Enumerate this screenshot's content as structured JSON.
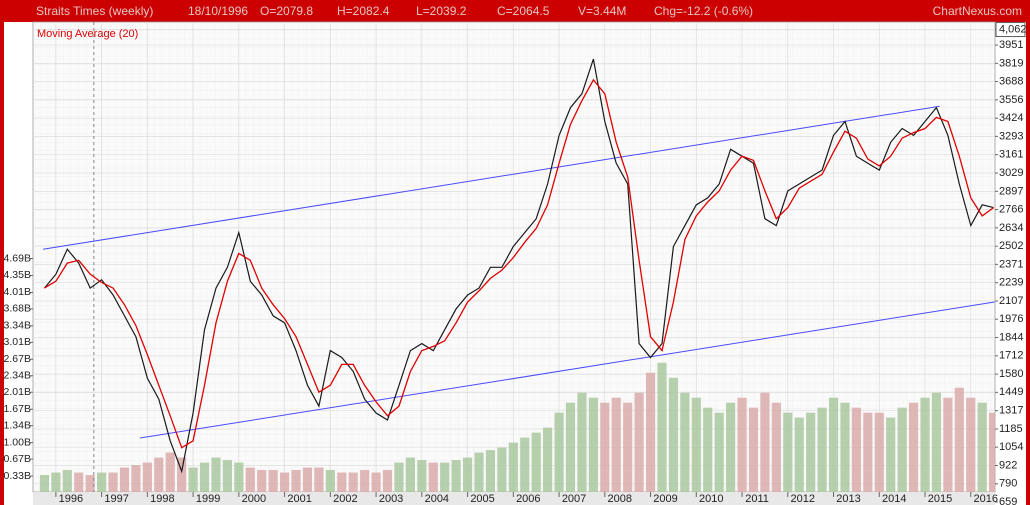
{
  "chart_data": {
    "type": "line",
    "title": "Straits Times (weekly)",
    "info": [
      "18/10/1996",
      "O=2079.8",
      "H=2082.4",
      "L=2039.2",
      "C=2064.5",
      "V=3.44M",
      "Chg=-12.2 (-0.6%)"
    ],
    "watermark": "ChartNexus.com",
    "x": [
      1995.75,
      1996,
      1996.25,
      1996.5,
      1996.75,
      1997,
      1997.25,
      1997.5,
      1997.75,
      1998,
      1998.25,
      1998.5,
      1998.75,
      1999,
      1999.25,
      1999.5,
      1999.75,
      2000,
      2000.25,
      2000.5,
      2000.75,
      2001,
      2001.25,
      2001.5,
      2001.75,
      2002,
      2002.25,
      2002.5,
      2002.75,
      2003,
      2003.25,
      2003.5,
      2003.75,
      2004,
      2004.25,
      2004.5,
      2004.75,
      2005,
      2005.25,
      2005.5,
      2005.75,
      2006,
      2006.25,
      2006.5,
      2006.75,
      2007,
      2007.25,
      2007.5,
      2007.75,
      2008,
      2008.25,
      2008.5,
      2008.75,
      2009,
      2009.25,
      2009.5,
      2009.75,
      2010,
      2010.25,
      2010.5,
      2010.75,
      2011,
      2011.25,
      2011.5,
      2011.75,
      2012,
      2012.25,
      2012.5,
      2012.75,
      2013,
      2013.25,
      2013.5,
      2013.75,
      2014,
      2014.25,
      2014.5,
      2014.75,
      2015,
      2015.25,
      2015.5,
      2015.75,
      2016,
      2016.25,
      2016.5
    ],
    "series": [
      {
        "color": "#1a1a1a",
        "values": [
          2200,
          2300,
          2480,
          2380,
          2200,
          2260,
          2150,
          2000,
          1850,
          1550,
          1400,
          1100,
          880,
          1300,
          1900,
          2200,
          2350,
          2600,
          2250,
          2150,
          2000,
          1950,
          1750,
          1500,
          1350,
          1750,
          1700,
          1600,
          1400,
          1300,
          1250,
          1500,
          1750,
          1800,
          1750,
          1900,
          2050,
          2150,
          2200,
          2350,
          2350,
          2500,
          2600,
          2700,
          2950,
          3300,
          3500,
          3600,
          3850,
          3400,
          3100,
          2950,
          1800,
          1700,
          1800,
          2500,
          2650,
          2800,
          2850,
          2950,
          3200,
          3150,
          3100,
          2700,
          2650,
          2900,
          2950,
          3000,
          3050,
          3300,
          3400,
          3150,
          3100,
          3050,
          3250,
          3350,
          3300,
          3400,
          3500,
          3300,
          2950,
          2650,
          2800,
          2780
        ]
      },
      {
        "name": "Moving Average (20)",
        "color": "#e00000",
        "values": [
          2200,
          2250,
          2380,
          2400,
          2300,
          2240,
          2200,
          2080,
          1930,
          1720,
          1500,
          1280,
          1050,
          1100,
          1500,
          1950,
          2250,
          2450,
          2400,
          2200,
          2080,
          1980,
          1850,
          1650,
          1450,
          1500,
          1650,
          1650,
          1500,
          1380,
          1280,
          1350,
          1600,
          1750,
          1780,
          1820,
          1950,
          2100,
          2180,
          2270,
          2330,
          2420,
          2530,
          2630,
          2800,
          3100,
          3380,
          3550,
          3700,
          3600,
          3250,
          3000,
          2400,
          1850,
          1750,
          2100,
          2550,
          2720,
          2820,
          2900,
          3050,
          3150,
          3120,
          2900,
          2700,
          2780,
          2920,
          2970,
          3020,
          3180,
          3330,
          3280,
          3130,
          3080,
          3150,
          3280,
          3320,
          3350,
          3430,
          3400,
          3150,
          2850,
          2720,
          2780
        ]
      },
      {
        "axis": "y2",
        "up_color": "#a9c79e",
        "down_color": "#d9aaaa",
        "values": [
          0.35,
          0.4,
          0.45,
          0.4,
          0.35,
          0.4,
          0.4,
          0.5,
          0.55,
          0.6,
          0.7,
          0.8,
          0.7,
          0.5,
          0.6,
          0.7,
          0.65,
          0.6,
          0.5,
          0.45,
          0.45,
          0.4,
          0.45,
          0.5,
          0.5,
          0.45,
          0.4,
          0.4,
          0.45,
          0.4,
          0.45,
          0.6,
          0.7,
          0.65,
          0.6,
          0.6,
          0.65,
          0.7,
          0.8,
          0.85,
          0.9,
          1.0,
          1.1,
          1.2,
          1.3,
          1.6,
          1.8,
          2.0,
          1.9,
          1.8,
          1.9,
          1.8,
          2.0,
          2.4,
          2.6,
          2.3,
          2.0,
          1.9,
          1.7,
          1.6,
          1.8,
          1.9,
          1.7,
          2.0,
          1.8,
          1.6,
          1.5,
          1.6,
          1.7,
          1.9,
          1.8,
          1.7,
          1.6,
          1.6,
          1.5,
          1.7,
          1.8,
          1.9,
          2.0,
          1.9,
          2.1,
          1.9,
          1.8,
          1.6
        ]
      }
    ],
    "trendlines": [
      {
        "color": "#4a4aff",
        "x": [
          1995.72,
          2015.32
        ],
        "values": [
          2480,
          3510
        ]
      },
      {
        "color": "#4a4aff",
        "x": [
          1997.84,
          2016.52
        ],
        "values": [
          1120,
          2100
        ]
      }
    ],
    "cursor_x": 1996.83,
    "xlim": [
      1995.5,
      2016.53
    ],
    "xticks": [
      1996,
      1997,
      1998,
      1999,
      2000,
      2001,
      2002,
      2003,
      2004,
      2005,
      2006,
      2007,
      2008,
      2009,
      2010,
      2011,
      2012,
      2013,
      2014,
      2015,
      2016
    ],
    "ylim": [
      659,
      4117
    ],
    "yticks": [
      {
        "value": 4062,
        "label": "4,062"
      },
      3951,
      3819,
      3688,
      3556,
      3424,
      3293,
      3161,
      3029,
      2897,
      2766,
      2634,
      2502,
      2371,
      2239,
      2107,
      1976,
      1844,
      1712,
      1580,
      1449,
      1317,
      1185,
      1054,
      922,
      790,
      659
    ],
    "y2lim": [
      0,
      9.43
    ],
    "y2ticks": [
      {
        "value": 4.69,
        "label": "4.69B"
      },
      {
        "value": 4.35,
        "label": "4.35B"
      },
      {
        "value": 4.01,
        "label": "4.01B"
      },
      {
        "value": 3.68,
        "label": "3.68B"
      },
      {
        "value": 3.34,
        "label": "3.34B"
      },
      {
        "value": 3.01,
        "label": "3.01B"
      },
      {
        "value": 2.67,
        "label": "2.67B"
      },
      {
        "value": 2.34,
        "label": "2.34B"
      },
      {
        "value": 2.01,
        "label": "2.01B"
      },
      {
        "value": 1.67,
        "label": "1.67B"
      },
      {
        "value": 1.34,
        "label": "1.34B"
      },
      {
        "value": 1,
        "label": "1.00B"
      },
      {
        "value": 0.67,
        "label": "0.67B"
      },
      {
        "value": 0.33,
        "label": "0.33B"
      }
    ],
    "grid": true
  }
}
